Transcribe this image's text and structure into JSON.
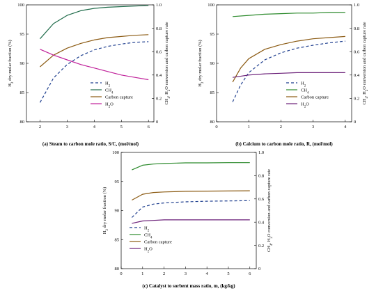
{
  "colors": {
    "H2": "#1f3f8f",
    "CH4": "#2c8a2c",
    "CH4_panel_a": "#1f6b4a",
    "Carbon capture": "#8b5a12",
    "H2O_panel_a": "#c0209a",
    "H2O": "#6a1f78"
  },
  "chart_data": [
    {
      "type": "line",
      "id": "a",
      "caption_label": "(a)",
      "caption_text": "Steam to carbon mole ratio, S/C, (mol/mol)",
      "xlabel": "",
      "ylabel_left": "H2 dry molar fraction (%)",
      "ylabel_right": "CH4, H2O conversion and carbon capture rate",
      "xlim": [
        1.5,
        6.2
      ],
      "ylim_left": [
        80,
        100
      ],
      "ylim_right": [
        0,
        1.0
      ],
      "xticks": [
        2,
        3,
        4,
        5,
        6
      ],
      "yticks_left": [
        80,
        85,
        90,
        95,
        100
      ],
      "yticks_right": [
        0,
        0.2,
        0.4,
        0.6,
        0.8,
        1.0
      ],
      "grid": false,
      "legend_placement": "lower-right",
      "series": [
        {
          "name": "H2",
          "axis": "left",
          "style": "dashed",
          "color_key": "H2",
          "x": [
            2,
            2.5,
            3,
            3.5,
            4,
            4.5,
            5,
            5.5,
            6
          ],
          "y": [
            83.3,
            87.5,
            89.8,
            91.3,
            92.3,
            92.9,
            93.3,
            93.6,
            93.7
          ]
        },
        {
          "name": "CH4",
          "axis": "right",
          "style": "solid",
          "color_key": "CH4_panel_a",
          "x": [
            2,
            2.5,
            3,
            3.5,
            4,
            4.5,
            5,
            5.5,
            6
          ],
          "y": [
            0.71,
            0.84,
            0.91,
            0.95,
            0.97,
            0.98,
            0.985,
            0.99,
            0.995
          ]
        },
        {
          "name": "Carbon capture",
          "axis": "right",
          "style": "solid",
          "color_key": "Carbon capture",
          "x": [
            2,
            2.5,
            3,
            3.5,
            4,
            4.5,
            5,
            5.5,
            6
          ],
          "y": [
            0.47,
            0.57,
            0.63,
            0.67,
            0.7,
            0.72,
            0.73,
            0.74,
            0.745
          ]
        },
        {
          "name": "H2O",
          "axis": "right",
          "style": "solid",
          "color_key": "H2O_panel_a",
          "x": [
            2,
            2.5,
            3,
            3.5,
            4,
            4.5,
            5,
            5.5,
            6
          ],
          "y": [
            0.62,
            0.57,
            0.53,
            0.49,
            0.46,
            0.43,
            0.4,
            0.38,
            0.36
          ]
        }
      ]
    },
    {
      "type": "line",
      "id": "b",
      "caption_label": "(b)",
      "caption_text": "Calcium to carbon mole ratio, R, (mol/mol)",
      "xlabel": "",
      "ylabel_left": "H2 dry molar fraction (%)",
      "ylabel_right": "CH4, H2O conversion and carbon capture rate",
      "xlim": [
        0,
        4.2
      ],
      "ylim_left": [
        80,
        100
      ],
      "ylim_right": [
        0,
        1.0
      ],
      "xticks": [
        0,
        1,
        2,
        3,
        4
      ],
      "yticks_left": [
        80,
        85,
        90,
        95,
        100
      ],
      "yticks_right": [
        0,
        0.2,
        0.4,
        0.6,
        0.8,
        1.0
      ],
      "grid": false,
      "legend_placement": "lower-right",
      "series": [
        {
          "name": "H2",
          "axis": "left",
          "style": "dashed",
          "color_key": "H2",
          "x": [
            0.5,
            0.75,
            1,
            1.5,
            2,
            2.5,
            3,
            3.5,
            4
          ],
          "y": [
            83.4,
            86.3,
            88.4,
            90.6,
            91.8,
            92.6,
            93.1,
            93.5,
            93.8
          ]
        },
        {
          "name": "CH4",
          "axis": "right",
          "style": "solid",
          "color_key": "CH4",
          "x": [
            0.5,
            1,
            1.5,
            2,
            2.5,
            3,
            3.5,
            4
          ],
          "y": [
            0.9,
            0.91,
            0.92,
            0.925,
            0.93,
            0.93,
            0.935,
            0.935
          ]
        },
        {
          "name": "Carbon capture",
          "axis": "right",
          "style": "solid",
          "color_key": "Carbon capture",
          "x": [
            0.5,
            0.75,
            1,
            1.5,
            2,
            2.5,
            3,
            3.5,
            4
          ],
          "y": [
            0.34,
            0.46,
            0.54,
            0.62,
            0.66,
            0.69,
            0.71,
            0.72,
            0.73
          ]
        },
        {
          "name": "H2O",
          "axis": "right",
          "style": "solid",
          "color_key": "H2O",
          "x": [
            0.5,
            1,
            1.5,
            2,
            2.5,
            3,
            3.5,
            4
          ],
          "y": [
            0.38,
            0.4,
            0.41,
            0.415,
            0.42,
            0.42,
            0.42,
            0.42
          ]
        }
      ]
    },
    {
      "type": "line",
      "id": "c",
      "caption_label": "(c)",
      "caption_text": "Catalyst to sorbent mass ratio, m, (kg/kg)",
      "xlabel": "",
      "ylabel_left": "H2 dry molar fraction (%)",
      "ylabel_right": "CH4, H2O conversion and carbon capture rate",
      "xlim": [
        0,
        6.3
      ],
      "ylim_left": [
        80,
        100
      ],
      "ylim_right": [
        0,
        1.0
      ],
      "xticks": [
        0,
        1,
        2,
        3,
        4,
        5,
        6
      ],
      "yticks_left": [
        80,
        85,
        90,
        95,
        100
      ],
      "yticks_right": [
        0,
        0.2,
        0.4,
        0.6,
        0.8,
        1.0
      ],
      "grid": false,
      "legend_placement": "lower-left",
      "series": [
        {
          "name": "H2",
          "axis": "left",
          "style": "dashed",
          "color_key": "H2",
          "x": [
            0.5,
            1,
            1.5,
            2,
            3,
            4,
            5,
            6
          ],
          "y": [
            88.8,
            90.6,
            91.1,
            91.3,
            91.5,
            91.6,
            91.65,
            91.7
          ]
        },
        {
          "name": "CH4",
          "axis": "right",
          "style": "solid",
          "color_key": "CH4",
          "x": [
            0.5,
            1,
            1.5,
            2,
            3,
            4,
            5,
            6
          ],
          "y": [
            0.85,
            0.89,
            0.9,
            0.905,
            0.91,
            0.91,
            0.912,
            0.912
          ]
        },
        {
          "name": "Carbon capture",
          "axis": "right",
          "style": "solid",
          "color_key": "Carbon capture",
          "x": [
            0.5,
            1,
            1.5,
            2,
            3,
            4,
            5,
            6
          ],
          "y": [
            0.59,
            0.64,
            0.655,
            0.66,
            0.665,
            0.667,
            0.668,
            0.67
          ]
        },
        {
          "name": "H2O",
          "axis": "right",
          "style": "solid",
          "color_key": "H2O",
          "x": [
            0.5,
            1,
            1.5,
            2,
            3,
            4,
            5,
            6
          ],
          "y": [
            0.39,
            0.41,
            0.415,
            0.42,
            0.42,
            0.42,
            0.42,
            0.42
          ]
        }
      ]
    }
  ]
}
